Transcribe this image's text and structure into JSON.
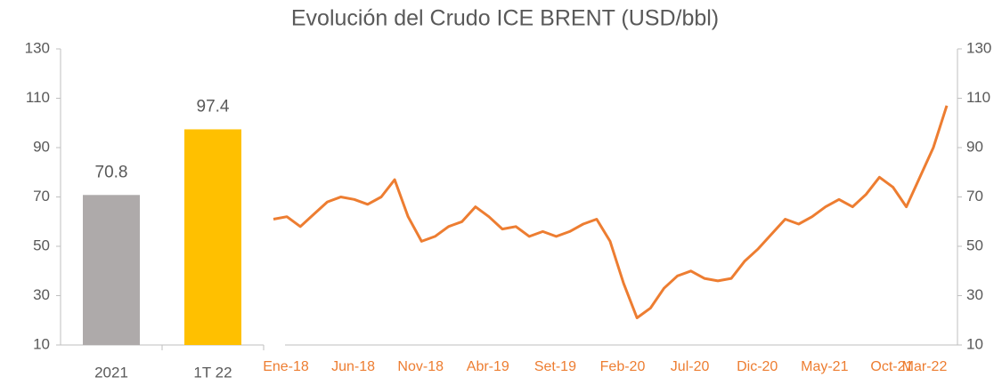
{
  "chart_data": [
    {
      "type": "bar",
      "categories": [
        "2021",
        "1T 22"
      ],
      "values": [
        70.8,
        97.4
      ],
      "colors": [
        "#aeaaaa",
        "#ffc000"
      ],
      "ylim": [
        10,
        130
      ],
      "yticks": [
        10,
        30,
        50,
        70,
        90,
        110,
        130
      ]
    },
    {
      "type": "line",
      "title": "Evolución del Crudo ICE BRENT (USD/bbl)",
      "categories": [
        "Ene-18",
        null,
        null,
        null,
        null,
        "Jun-18",
        null,
        null,
        null,
        null,
        "Nov-18",
        null,
        null,
        null,
        null,
        "Abr-19",
        null,
        null,
        null,
        null,
        "Set-19",
        null,
        null,
        null,
        null,
        "Feb-20",
        null,
        null,
        null,
        null,
        "Jul-20",
        null,
        null,
        null,
        null,
        "Dic-20",
        null,
        null,
        null,
        null,
        "May-21",
        null,
        null,
        null,
        null,
        "Oct-21",
        null,
        null,
        null,
        null,
        "Mar-22"
      ],
      "series": [
        {
          "color": "#ed7d31",
          "axis": "y2",
          "values": [
            61,
            62,
            58,
            63,
            68,
            70,
            69,
            67,
            70,
            77,
            62,
            52,
            54,
            58,
            60,
            66,
            62,
            57,
            58,
            54,
            56,
            54,
            56,
            59,
            61,
            52,
            35,
            21,
            25,
            33,
            38,
            40,
            37,
            36,
            37,
            44,
            49,
            55,
            61,
            59,
            62,
            66,
            69,
            66,
            71,
            78,
            74,
            66,
            78,
            90,
            107
          ]
        }
      ],
      "y2lim": [
        10,
        130
      ],
      "y2ticks": [
        10,
        30,
        50,
        70,
        90,
        110,
        130
      ]
    }
  ]
}
